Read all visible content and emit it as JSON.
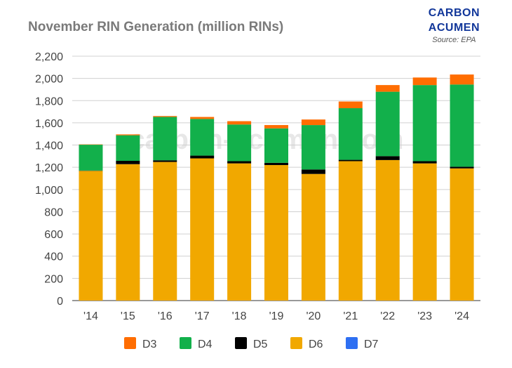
{
  "title": "November RIN Generation (million RINs)",
  "brand": {
    "line1": "CARBON",
    "line2": "ACUMEN",
    "source": "Source: EPA"
  },
  "watermark": "carbon-acumen.com",
  "chart_data": {
    "type": "bar",
    "stacked": true,
    "title": "November RIN Generation (million RINs)",
    "xlabel": "",
    "ylabel": "",
    "categories": [
      "'14",
      "'15",
      "'16",
      "'17",
      "'18",
      "'19",
      "'20",
      "'21",
      "'22",
      "'23",
      "'24"
    ],
    "ylim": [
      0,
      2200
    ],
    "yticks": [
      0,
      200,
      400,
      600,
      800,
      1000,
      1200,
      1400,
      1600,
      1800,
      2000,
      2200
    ],
    "ytick_labels": [
      "0",
      "200",
      "400",
      "600",
      "800",
      "1,000",
      "1,200",
      "1,400",
      "1,600",
      "1,800",
      "2,000",
      "2,200"
    ],
    "grid": true,
    "legend_position": "bottom",
    "stack_order": [
      "D6",
      "D5",
      "D4",
      "D3",
      "D7"
    ],
    "series": [
      {
        "name": "D3",
        "color": "#ff6d01",
        "values": [
          3,
          8,
          8,
          18,
          30,
          30,
          50,
          60,
          60,
          68,
          90
        ]
      },
      {
        "name": "D4",
        "color": "#12b04b",
        "values": [
          232,
          230,
          390,
          330,
          330,
          310,
          400,
          465,
          580,
          685,
          740
        ]
      },
      {
        "name": "D5",
        "color": "#000000",
        "values": [
          3,
          30,
          15,
          25,
          20,
          20,
          40,
          12,
          35,
          20,
          15
        ]
      },
      {
        "name": "D6",
        "color": "#f1a800",
        "values": [
          1168,
          1228,
          1248,
          1280,
          1235,
          1220,
          1140,
          1255,
          1265,
          1235,
          1190
        ]
      },
      {
        "name": "D7",
        "color": "#2e6ff2",
        "values": [
          0,
          0,
          0,
          0,
          0,
          0,
          0,
          0,
          0,
          0,
          0
        ]
      }
    ]
  }
}
